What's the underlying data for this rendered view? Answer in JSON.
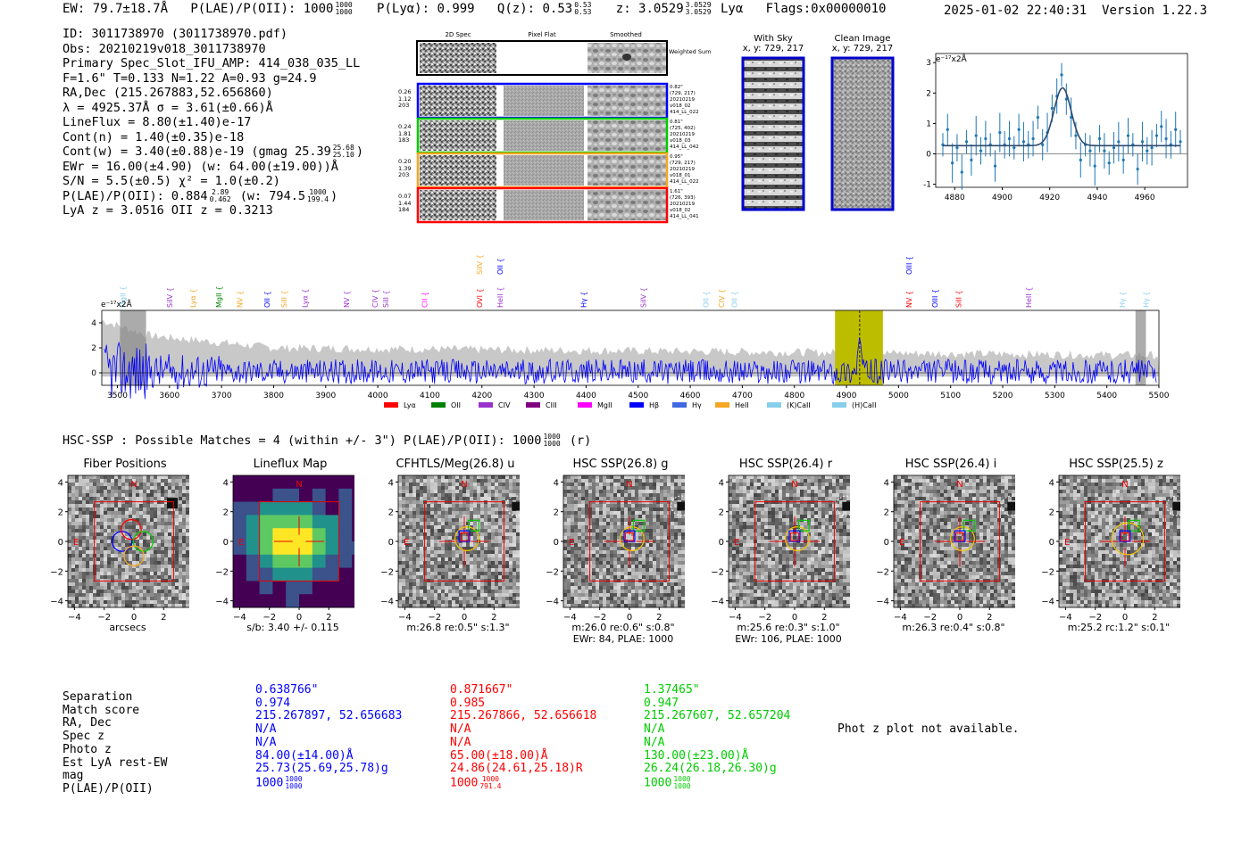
{
  "header": {
    "ew": "EW: 79.7±18.7Å",
    "plae_label": "P(LAE)/P(OII): 1000",
    "plae_hi": "1000",
    "plae_lo": "1000",
    "plya": "P(Lyα): 0.999",
    "qz_label": "Q(z): 0.53",
    "qz_hi": "0.53",
    "qz_lo": "0.53",
    "z_label": "z: 3.0529",
    "z_hi": "3.0529",
    "z_lo": "3.0529",
    "z_line": "Lyα",
    "flags": "Flags:0x00000010",
    "datetime": "2025-01-02 22:40:31",
    "version": "Version 1.22.3"
  },
  "info": {
    "id": "ID: 3011738970 (3011738970.pdf)",
    "obs": "Obs: 20210219v018_3011738970",
    "primary": "Primary Spec_Slot_IFU_AMP: 414_038_035_LL",
    "fiber": "F=1.6\"  T=0.133  N=1.22  A=0.93  g=24.9",
    "radec": "RA,Dec (215.267883,52.656860)",
    "lambda": "λ = 4925.37Å  σ = 3.61(±0.66)Å",
    "lineflux": "LineFlux = 8.80(±1.40)e-17",
    "contn": "Cont(n) = 1.40(±0.35)e-18",
    "contw_label": "Cont(w) = 3.40(±0.88)e-19 (gmag 25.39",
    "contw_hi": "25.68",
    "contw_lo": "25.10",
    "contw_end": ")",
    "ewr": "EWr = 16.00(±4.90) (w: 64.00(±19.00))Å",
    "sn": "S/N = 5.5(±0.5)  χ² = 1.0(±0.2)",
    "plae_label": "P(LAE)/P(OII): 0.884",
    "plae_hi": "2.89",
    "plae_lo": "0.462",
    "plae_w": "(w: 794.5",
    "plae_w_hi": "1000",
    "plae_w_lo": "199.4",
    "plae_w_end": ")",
    "lyaz": "LyA z = 3.0516   OII z = 0.3213"
  },
  "spec2d": {
    "col_2d": "2D Spec",
    "col_flat": "Pixel Flat",
    "col_smooth": "Smoothed",
    "weighted": "Weighted Sum",
    "rows": [
      {
        "left": [
          "0.26",
          "1.12",
          "203"
        ],
        "right": [
          "0.82\"",
          "(729, 217)",
          "20210219",
          "v018_02",
          "414_LL_022"
        ],
        "color": "#0000ff"
      },
      {
        "left": [
          "0.24",
          "1.81",
          "183"
        ],
        "right": [
          "0.81\"",
          "(725, 402)",
          "20210219",
          "v018_03",
          "414_LL_042"
        ],
        "color": "#00cc00"
      },
      {
        "left": [
          "0.20",
          "1.39",
          "203"
        ],
        "right": [
          "0.95\"",
          "(729, 217)",
          "20210219",
          "v018_01",
          "414_LL_022"
        ],
        "color": "#f5a623"
      },
      {
        "left": [
          "0.07",
          "1.44",
          "184"
        ],
        "right": [
          "1.61\"",
          "(726, 393)",
          "20210219",
          "v018_02",
          "414_LL_041"
        ],
        "color": "#ff0000"
      }
    ]
  },
  "sky": {
    "title": "With Sky",
    "coords": "x, y: 729, 217"
  },
  "clean": {
    "title": "Clean Image",
    "coords": "x, y: 729, 217"
  },
  "zoom_scale": "e⁻¹⁷x2Å",
  "full_scale": "e⁻¹⁷x2Å",
  "line_labels": [
    {
      "w": 3510,
      "t": "MgII",
      "c": "#87ceeb",
      "row": 0
    },
    {
      "w": 3600,
      "t": "SiIV",
      "c": "#9932cc",
      "row": 0
    },
    {
      "w": 3645,
      "t": "Lyα",
      "c": "#f5a623",
      "row": 0
    },
    {
      "w": 3695,
      "t": "MgII",
      "c": "#008000",
      "row": 0
    },
    {
      "w": 3735,
      "t": "NV",
      "c": "#f5a623",
      "row": 0
    },
    {
      "w": 3787,
      "t": "OII",
      "c": "#0000ff",
      "row": 0
    },
    {
      "w": 3820,
      "t": "SiII",
      "c": "#f5a623",
      "row": 0
    },
    {
      "w": 3860,
      "t": "Lyα",
      "c": "#9932cc",
      "row": 0
    },
    {
      "w": 3940,
      "t": "NV",
      "c": "#9932cc",
      "row": 0
    },
    {
      "w": 3995,
      "t": "CIV",
      "c": "#9932cc",
      "row": 0
    },
    {
      "w": 4015,
      "t": "SiII",
      "c": "#9932cc",
      "row": 0
    },
    {
      "w": 4090,
      "t": "CII",
      "c": "#ff00ff",
      "row": 0
    },
    {
      "w": 4195,
      "t": "OVI",
      "c": "#ff0000",
      "row": 0
    },
    {
      "w": 4195,
      "t": "SiIV",
      "c": "#f5a623",
      "row": 1
    },
    {
      "w": 4235,
      "t": "HeII",
      "c": "#9932cc",
      "row": 0
    },
    {
      "w": 4235,
      "t": "OII",
      "c": "#0000ff",
      "row": 1
    },
    {
      "w": 4395,
      "t": "Hγ",
      "c": "#0000ff",
      "row": 0
    },
    {
      "w": 4510,
      "t": "SiIV",
      "c": "#9932cc",
      "row": 0
    },
    {
      "w": 4535,
      "t": "",
      "c": "#9932cc",
      "row": 0
    },
    {
      "w": 4630,
      "t": "OII",
      "c": "#87ceeb",
      "row": 0
    },
    {
      "w": 4660,
      "t": "CIV",
      "c": "#f5a623",
      "row": 0
    },
    {
      "w": 4685,
      "t": "OII",
      "c": "#87ceeb",
      "row": 0
    },
    {
      "w": 5020,
      "t": "NV",
      "c": "#ff0000",
      "row": 0
    },
    {
      "w": 5020,
      "t": "OIII",
      "c": "#0000ff",
      "row": 1
    },
    {
      "w": 5070,
      "t": "OIII",
      "c": "#0000ff",
      "row": 0
    },
    {
      "w": 5115,
      "t": "SiII",
      "c": "#ff0000",
      "row": 0
    },
    {
      "w": 5250,
      "t": "HeII",
      "c": "#9932cc",
      "row": 0
    },
    {
      "w": 5430,
      "t": "Hγ",
      "c": "#87ceeb",
      "row": 0
    },
    {
      "w": 5475,
      "t": "Hγ",
      "c": "#87ceeb",
      "row": 0
    }
  ],
  "legend": [
    {
      "t": "Lyα",
      "c": "#ff0000"
    },
    {
      "t": "OII",
      "c": "#008000"
    },
    {
      "t": "CIV",
      "c": "#9932cc"
    },
    {
      "t": "CIII",
      "c": "#800080"
    },
    {
      "t": "MgII",
      "c": "#ff00ff"
    },
    {
      "t": "Hβ",
      "c": "#0000ff"
    },
    {
      "t": "Hγ",
      "c": "#4169e1"
    },
    {
      "t": "HeII",
      "c": "#f5a623"
    },
    {
      "t": "(K)CaII",
      "c": "#87ceeb"
    },
    {
      "t": "(H)CaII",
      "c": "#87ceeb"
    }
  ],
  "hsc": {
    "label": "HSC-SSP : Possible Matches = 4 (within +/- 3\")  P(LAE)/P(OII): 1000",
    "hi": "1000",
    "lo": "1000",
    "end": "(r)"
  },
  "cutouts": [
    {
      "title": "Fiber Positions",
      "cap1": "arcsecs",
      "cap2": ""
    },
    {
      "title": "Lineflux Map",
      "cap1": "s/b: 3.40 +/- 0.115",
      "cap2": ""
    },
    {
      "title": "CFHTLS/Meg(26.8) u",
      "cap1": "m:26.8  re:0.5\"  s:1.3\"",
      "cap2": ""
    },
    {
      "title": "HSC SSP(26.8) g",
      "cap1": "m:26.0  re:0.6\"  s:0.8\"",
      "cap2": "EWr: 84, PLAE: 1000"
    },
    {
      "title": "HSC SSP(26.4) r",
      "cap1": "m:25.6  re:0.3\"  s:1.0\"",
      "cap2": "EWr: 106, PLAE: 1000"
    },
    {
      "title": "HSC SSP(26.4) i",
      "cap1": "m:26.3  re:0.4\"  s:0.8\"",
      "cap2": ""
    },
    {
      "title": "HSC SSP(25.5) z",
      "cap1": "m:25.2  rc:1.2\"  s:0.1\"",
      "cap2": ""
    }
  ],
  "cutout_ticks": [
    "4",
    "2",
    "0",
    "−2",
    "−4"
  ],
  "cutout_xticks": [
    "−4",
    "−2",
    "0",
    "2",
    "4"
  ],
  "compass": {
    "n": "N",
    "e": "E"
  },
  "table": {
    "labels": [
      "Separation",
      "Match score",
      "RA, Dec",
      "Spec z",
      "Photo z",
      "Est LyA rest-EW",
      "mag",
      "P(LAE)/P(OII)"
    ],
    "columns": [
      {
        "color": "#0000ff",
        "vals": [
          "0.638766\"",
          "0.974",
          "215.267897, 52.656683",
          "N/A",
          "N/A",
          "84.00(±14.00)Å",
          "25.73(25.69,25.78)g",
          "1000"
        ],
        "hi": "1000",
        "lo": "1000"
      },
      {
        "color": "#ff0000",
        "vals": [
          "0.871667\"",
          "0.985",
          "215.267866, 52.656618",
          "N/A",
          "N/A",
          "65.00(±18.00)Å",
          "24.86(24.61,25.18)R",
          "1000"
        ],
        "hi": "1000",
        "lo": "791.4"
      },
      {
        "color": "#00cc00",
        "vals": [
          "1.37465\"",
          "0.947",
          "215.267607, 52.657204",
          "N/A",
          "N/A",
          "130.00(±23.00)Å",
          "26.24(26.18,26.30)g",
          "1000"
        ],
        "hi": "1000",
        "lo": "1000"
      }
    ],
    "photz": "Phot z plot not available."
  },
  "chart_data": [
    {
      "type": "line",
      "title": "",
      "xlabel": "",
      "ylabel": "e-17 x2Å",
      "xlim": [
        4872,
        4978
      ],
      "ylim": [
        -1.1,
        3.3
      ],
      "xticks": [
        4880,
        4900,
        4920,
        4940,
        4960
      ],
      "yticks": [
        -1,
        0,
        1,
        2,
        3
      ],
      "x": [
        4875,
        4877,
        4879,
        4881,
        4883,
        4885,
        4887,
        4889,
        4891,
        4893,
        4895,
        4897,
        4899,
        4901,
        4903,
        4905,
        4907,
        4909,
        4911,
        4913,
        4915,
        4917,
        4919,
        4921,
        4923,
        4925,
        4927,
        4929,
        4931,
        4933,
        4935,
        4937,
        4939,
        4941,
        4943,
        4945,
        4947,
        4949,
        4951,
        4953,
        4955,
        4957,
        4959,
        4961,
        4963,
        4965,
        4967,
        4969,
        4971,
        4973,
        4975
      ],
      "values": [
        0.3,
        0.8,
        -0.3,
        0.2,
        -0.6,
        0.4,
        -0.2,
        0.6,
        0.1,
        0.5,
        0.3,
        -0.4,
        0.7,
        0.3,
        0.5,
        0.2,
        0.8,
        0.4,
        0.3,
        0.5,
        1.2,
        0.3,
        0.7,
        1.5,
        1.9,
        2.6,
        1.8,
        1.2,
        0.6,
        -0.2,
        0.3,
        0.1,
        -0.4,
        0.5,
        0.1,
        -0.3,
        0.2,
        0.4,
        -0.2,
        0.6,
        0.3,
        -0.5,
        0.4,
        0.1,
        0.2,
        0.6,
        0.9,
        0.5,
        0.3,
        0.8,
        0.4
      ],
      "errors": 0.55,
      "fit": {
        "center": 4925.4,
        "sigma": 3.6,
        "amp": 1.9,
        "base": 0.27
      }
    },
    {
      "type": "line",
      "series": [
        {
          "name": "flux",
          "color": "#0000ff"
        },
        {
          "name": "noise",
          "color": "#bbbbbb"
        }
      ],
      "xlim": [
        3470,
        5500
      ],
      "ylim": [
        -1,
        5
      ],
      "xticks": [
        3500,
        3600,
        3700,
        3800,
        3900,
        4000,
        4100,
        4200,
        4300,
        4400,
        4500,
        4600,
        4700,
        4800,
        4900,
        5000,
        5100,
        5200,
        5300,
        5400,
        5500
      ],
      "yticks": [
        0,
        2,
        4
      ],
      "highlight": [
        4878,
        4970
      ],
      "line_center": 4925.4,
      "masked": [
        [
          3505,
          3555
        ],
        [
          5455,
          5475
        ]
      ]
    }
  ]
}
